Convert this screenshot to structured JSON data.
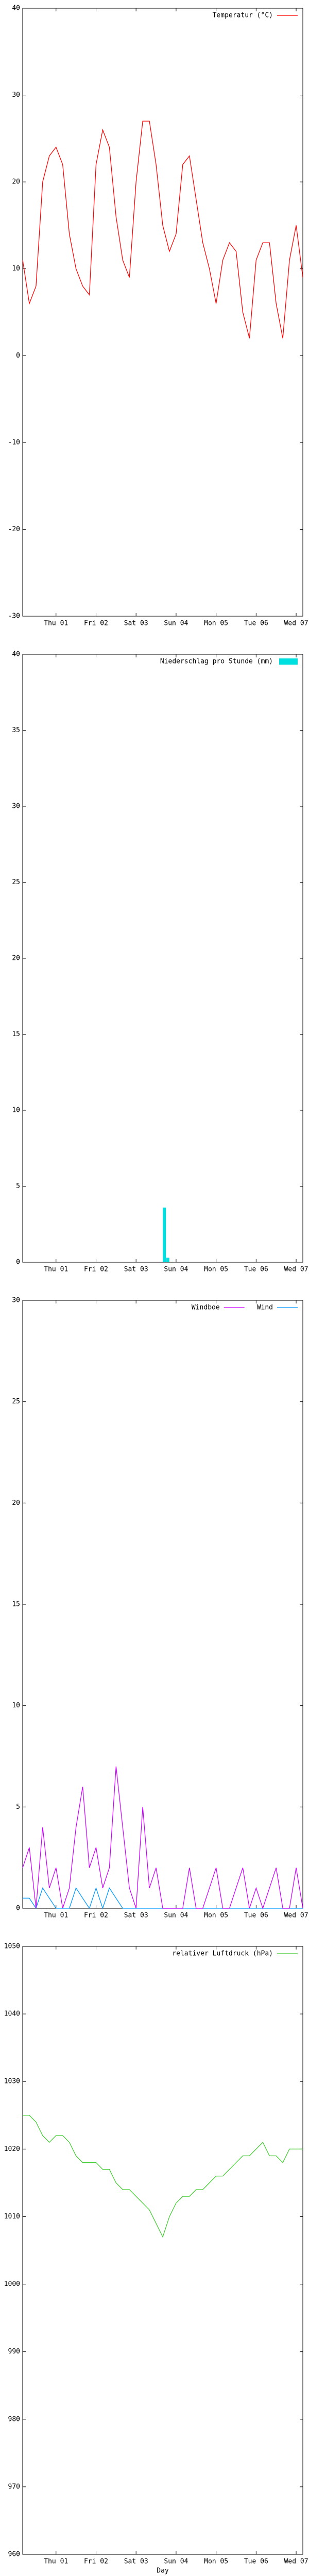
{
  "chart_data": [
    {
      "type": "line",
      "xlim": [
        0,
        168
      ],
      "ylim": [
        -30,
        40
      ],
      "yticks": [
        -30,
        -20,
        -10,
        0,
        10,
        20,
        30,
        40
      ],
      "xticks": [
        {
          "value": 20,
          "label": "Thu 01"
        },
        {
          "value": 44,
          "label": "Fri 02"
        },
        {
          "value": 68,
          "label": "Sat 03"
        },
        {
          "value": 92,
          "label": "Sun 04"
        },
        {
          "value": 116,
          "label": "Mon 05"
        },
        {
          "value": 140,
          "label": "Tue 06"
        },
        {
          "value": 164,
          "label": "Wed 07"
        }
      ],
      "x": [
        0,
        4,
        8,
        12,
        16,
        20,
        24,
        28,
        32,
        36,
        40,
        44,
        48,
        52,
        56,
        60,
        64,
        68,
        72,
        76,
        80,
        84,
        88,
        92,
        96,
        100,
        104,
        108,
        112,
        116,
        120,
        124,
        128,
        132,
        136,
        140,
        144,
        148,
        152,
        156,
        160,
        164,
        168
      ],
      "series": [
        {
          "name": "Temperatur (°C)",
          "color": "#ff0000",
          "values": [
            11,
            6,
            8,
            20,
            23,
            24,
            22,
            14,
            10,
            8,
            7,
            22,
            26,
            24,
            16,
            11,
            9,
            20,
            27,
            27,
            22,
            15,
            12,
            14,
            22,
            23,
            18,
            13,
            10,
            6,
            11,
            13,
            12,
            5,
            2,
            11,
            13,
            13,
            6,
            2,
            11,
            15,
            9
          ]
        }
      ]
    },
    {
      "type": "bar",
      "xlim": [
        0,
        168
      ],
      "ylim": [
        0,
        40
      ],
      "yticks": [
        0,
        5,
        10,
        15,
        20,
        25,
        30,
        35,
        40
      ],
      "xticks": [
        {
          "value": 20,
          "label": "Thu 01"
        },
        {
          "value": 44,
          "label": "Fri 02"
        },
        {
          "value": 68,
          "label": "Sat 03"
        },
        {
          "value": 92,
          "label": "Sun 04"
        },
        {
          "value": 116,
          "label": "Mon 05"
        },
        {
          "value": 140,
          "label": "Tue 06"
        },
        {
          "value": 164,
          "label": "Wed 07"
        }
      ],
      "x": [
        85,
        87
      ],
      "series": [
        {
          "name": "Niederschlag pro Stunde (mm)",
          "color": "#00e0e0",
          "values": [
            3.6,
            0.3
          ]
        }
      ]
    },
    {
      "type": "line",
      "xlim": [
        0,
        168
      ],
      "ylim": [
        0,
        30
      ],
      "yticks": [
        0,
        5,
        10,
        15,
        20,
        25,
        30
      ],
      "xticks": [
        {
          "value": 20,
          "label": "Thu 01"
        },
        {
          "value": 44,
          "label": "Fri 02"
        },
        {
          "value": 68,
          "label": "Sat 03"
        },
        {
          "value": 92,
          "label": "Sun 04"
        },
        {
          "value": 116,
          "label": "Mon 05"
        },
        {
          "value": 140,
          "label": "Tue 06"
        },
        {
          "value": 164,
          "label": "Wed 07"
        }
      ],
      "x": [
        0,
        4,
        8,
        12,
        16,
        20,
        24,
        28,
        32,
        36,
        40,
        44,
        48,
        52,
        56,
        60,
        64,
        68,
        72,
        76,
        80,
        84,
        88,
        92,
        96,
        100,
        104,
        108,
        112,
        116,
        120,
        124,
        128,
        132,
        136,
        140,
        144,
        148,
        152,
        156,
        160,
        164,
        168
      ],
      "series": [
        {
          "name": "Windboe",
          "color": "#cc00ff",
          "values": [
            2,
            3,
            0,
            4,
            1,
            2,
            0,
            1,
            4,
            6,
            2,
            3,
            1,
            2,
            7,
            4,
            1,
            0,
            5,
            1,
            2,
            0,
            0,
            0,
            0,
            2,
            0,
            0,
            1,
            2,
            0,
            0,
            1,
            2,
            0,
            1,
            0,
            1,
            2,
            0,
            0,
            2,
            0
          ]
        },
        {
          "name": "Wind",
          "color": "#0099ff",
          "values": [
            0.5,
            0.5,
            0,
            1,
            0.5,
            0,
            0,
            0,
            1,
            0.5,
            0,
            1,
            0,
            1,
            0.5,
            0,
            0,
            0,
            0,
            0,
            0,
            0,
            0,
            0,
            0,
            0,
            0,
            0,
            0,
            0,
            0,
            0,
            0,
            0,
            0,
            0,
            0,
            0,
            0,
            0,
            0,
            0,
            0
          ]
        }
      ]
    },
    {
      "type": "line",
      "xlim": [
        0,
        168
      ],
      "ylim": [
        960,
        1050
      ],
      "yticks": [
        960,
        970,
        980,
        990,
        1000,
        1010,
        1020,
        1030,
        1040,
        1050
      ],
      "xticks": [
        {
          "value": 20,
          "label": "Thu 01"
        },
        {
          "value": 44,
          "label": "Fri 02"
        },
        {
          "value": 68,
          "label": "Sat 03"
        },
        {
          "value": 92,
          "label": "Sun 04"
        },
        {
          "value": 116,
          "label": "Mon 05"
        },
        {
          "value": 140,
          "label": "Tue 06"
        },
        {
          "value": 164,
          "label": "Wed 07"
        }
      ],
      "xlabel": "Day",
      "x": [
        0,
        4,
        8,
        12,
        16,
        20,
        24,
        28,
        32,
        36,
        40,
        44,
        48,
        52,
        56,
        60,
        64,
        68,
        72,
        76,
        80,
        84,
        88,
        92,
        96,
        100,
        104,
        108,
        112,
        116,
        120,
        124,
        128,
        132,
        136,
        140,
        144,
        148,
        152,
        156,
        160,
        164,
        168
      ],
      "series": [
        {
          "name": "relativer Luftdruck (hPa)",
          "color": "#44cc33",
          "values": [
            1025,
            1025,
            1024,
            1022,
            1021,
            1022,
            1022,
            1021,
            1019,
            1018,
            1018,
            1018,
            1017,
            1017,
            1015,
            1014,
            1014,
            1013,
            1012,
            1011,
            1009,
            1007,
            1010,
            1012,
            1013,
            1013,
            1014,
            1014,
            1015,
            1016,
            1016,
            1017,
            1018,
            1019,
            1019,
            1020,
            1021,
            1019,
            1019,
            1018,
            1020,
            1020,
            1020
          ]
        }
      ]
    }
  ]
}
